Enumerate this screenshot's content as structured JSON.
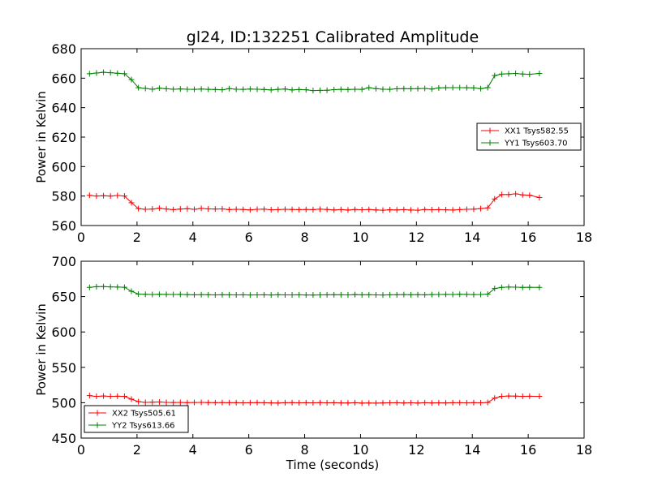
{
  "chart_data": [
    {
      "type": "line",
      "title": "gl24, ID:132251 Calibrated Amplitude",
      "xlabel": "",
      "ylabel": "Power in Kelvin",
      "xlim": [
        0,
        18
      ],
      "ylim": [
        560,
        680
      ],
      "xticks": [
        "0",
        "2",
        "4",
        "6",
        "8",
        "10",
        "12",
        "14",
        "16",
        "18"
      ],
      "yticks": [
        "560",
        "580",
        "600",
        "620",
        "640",
        "660",
        "680"
      ],
      "legend_position": "center-right",
      "x": [
        0.3,
        0.55,
        0.8,
        1.05,
        1.3,
        1.55,
        1.8,
        2.05,
        2.3,
        2.55,
        2.8,
        3.05,
        3.3,
        3.55,
        3.8,
        4.05,
        4.3,
        4.55,
        4.8,
        5.05,
        5.3,
        5.55,
        5.8,
        6.05,
        6.3,
        6.55,
        6.8,
        7.05,
        7.3,
        7.55,
        7.8,
        8.05,
        8.3,
        8.55,
        8.8,
        9.05,
        9.3,
        9.55,
        9.8,
        10.05,
        10.3,
        10.55,
        10.8,
        11.05,
        11.3,
        11.55,
        11.8,
        12.05,
        12.3,
        12.55,
        12.8,
        13.05,
        13.3,
        13.55,
        13.8,
        14.05,
        14.3,
        14.55,
        14.8,
        15.05,
        15.3,
        15.55,
        15.8,
        16.05,
        16.4
      ],
      "series": [
        {
          "name": "XX1 Tsys582.55",
          "color": "#ff0000",
          "values": [
            580.5,
            580.0,
            580.2,
            580.0,
            580.4,
            580.0,
            575.5,
            571.5,
            571.0,
            571.2,
            571.8,
            571.2,
            570.8,
            571.2,
            571.4,
            571.0,
            571.6,
            571.3,
            571.2,
            571.3,
            570.8,
            571.0,
            570.9,
            570.6,
            571.0,
            571.1,
            570.7,
            570.8,
            571.0,
            570.9,
            570.8,
            570.9,
            570.8,
            571.1,
            570.9,
            570.6,
            570.8,
            570.5,
            570.9,
            570.7,
            570.9,
            570.6,
            570.4,
            570.7,
            570.6,
            570.8,
            570.5,
            570.4,
            570.9,
            570.7,
            570.8,
            570.7,
            570.5,
            570.8,
            571.0,
            571.1,
            571.5,
            572.0,
            578.0,
            581.0,
            581.0,
            581.5,
            580.8,
            580.6,
            579.0
          ]
        },
        {
          "name": "YY1 Tsys603.70",
          "color": "#008000",
          "values": [
            663.0,
            663.5,
            664.0,
            663.7,
            663.3,
            663.0,
            659.0,
            653.5,
            653.0,
            652.5,
            653.2,
            652.8,
            652.5,
            652.7,
            652.5,
            652.4,
            652.6,
            652.4,
            652.3,
            652.1,
            652.9,
            652.5,
            652.4,
            652.6,
            652.5,
            652.3,
            652.0,
            652.4,
            652.6,
            652.0,
            652.3,
            652.1,
            651.6,
            651.7,
            651.8,
            652.2,
            652.4,
            652.3,
            652.5,
            652.4,
            653.5,
            652.9,
            652.5,
            652.4,
            652.8,
            652.9,
            652.8,
            652.9,
            653.0,
            652.6,
            653.4,
            653.5,
            653.6,
            653.6,
            653.5,
            653.4,
            652.9,
            653.6,
            661.8,
            662.8,
            663.0,
            663.2,
            662.8,
            662.6,
            663.2
          ]
        }
      ]
    },
    {
      "type": "line",
      "title": "",
      "xlabel": "Time (seconds)",
      "ylabel": "Power in Kelvin",
      "xlim": [
        0,
        18
      ],
      "ylim": [
        450,
        700
      ],
      "xticks": [
        "0",
        "2",
        "4",
        "6",
        "8",
        "10",
        "12",
        "14",
        "16",
        "18"
      ],
      "yticks": [
        "450",
        "500",
        "550",
        "600",
        "650",
        "700"
      ],
      "legend_position": "lower-left",
      "x": [
        0.3,
        0.55,
        0.8,
        1.05,
        1.3,
        1.55,
        1.8,
        2.05,
        2.3,
        2.55,
        2.8,
        3.05,
        3.3,
        3.55,
        3.8,
        4.05,
        4.3,
        4.55,
        4.8,
        5.05,
        5.3,
        5.55,
        5.8,
        6.05,
        6.3,
        6.55,
        6.8,
        7.05,
        7.3,
        7.55,
        7.8,
        8.05,
        8.3,
        8.55,
        8.8,
        9.05,
        9.3,
        9.55,
        9.8,
        10.05,
        10.3,
        10.55,
        10.8,
        11.05,
        11.3,
        11.55,
        11.8,
        12.05,
        12.3,
        12.55,
        12.8,
        13.05,
        13.3,
        13.55,
        13.8,
        14.05,
        14.3,
        14.55,
        14.8,
        15.05,
        15.3,
        15.55,
        15.8,
        16.05,
        16.4
      ],
      "series": [
        {
          "name": "XX2 Tsys505.61",
          "color": "#ff0000",
          "values": [
            510.0,
            509.0,
            509.5,
            509.0,
            509.2,
            509.0,
            505.0,
            501.5,
            500.5,
            500.8,
            501.0,
            500.5,
            500.3,
            500.4,
            500.2,
            500.3,
            500.4,
            500.2,
            500.1,
            500.2,
            500.0,
            500.1,
            499.9,
            500.0,
            500.2,
            500.0,
            499.8,
            499.6,
            500.0,
            500.1,
            499.9,
            500.0,
            499.9,
            500.1,
            499.9,
            500.0,
            499.8,
            499.7,
            500.0,
            499.5,
            499.6,
            499.4,
            499.8,
            499.9,
            500.0,
            499.7,
            499.9,
            499.6,
            500.0,
            499.8,
            499.9,
            499.8,
            500.0,
            500.0,
            499.9,
            500.1,
            499.9,
            500.3,
            506.5,
            509.0,
            509.5,
            509.3,
            509.0,
            509.2,
            509.0
          ]
        },
        {
          "name": "YY2 Tsys613.66",
          "color": "#008000",
          "values": [
            663.0,
            664.0,
            664.2,
            663.8,
            663.5,
            663.2,
            657.5,
            653.5,
            653.2,
            653.0,
            653.3,
            653.1,
            653.0,
            653.1,
            652.8,
            652.5,
            652.7,
            652.6,
            652.4,
            652.6,
            652.5,
            652.4,
            652.5,
            652.3,
            652.4,
            652.5,
            652.3,
            652.6,
            652.4,
            652.4,
            652.5,
            652.3,
            652.2,
            652.4,
            652.5,
            652.6,
            652.5,
            652.4,
            652.8,
            652.5,
            652.6,
            652.4,
            652.3,
            652.5,
            652.6,
            652.8,
            652.6,
            652.7,
            652.5,
            652.9,
            653.0,
            653.1,
            653.0,
            653.2,
            653.1,
            652.9,
            653.0,
            653.4,
            661.5,
            663.0,
            663.5,
            663.3,
            663.0,
            663.2,
            663.0
          ]
        }
      ]
    }
  ]
}
